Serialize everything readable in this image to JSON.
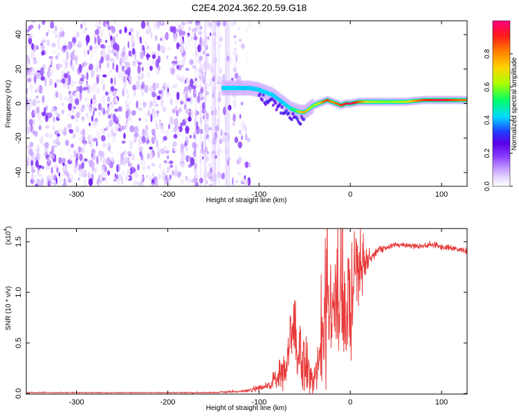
{
  "title": "C2E4.2024.362.20.59.G18",
  "colors": {
    "snr_line": "#e83a3a",
    "axis": "#000000",
    "background": "#ffffff",
    "colormap": [
      "#ffffff",
      "#e8d9ff",
      "#c9a3ff",
      "#8b3dff",
      "#5a00e6",
      "#1f3dff",
      "#00d9ff",
      "#00ff66",
      "#aaff00",
      "#ffd200",
      "#ff7a00",
      "#ff1a1a",
      "#ff0080"
    ]
  },
  "chart_data": [
    {
      "type": "heatmap",
      "title": "C2E4.2024.362.20.59.G18",
      "xlabel": "Height of straight line (km)",
      "ylabel": "Frequency (Hz)",
      "xlim": [
        -355,
        128
      ],
      "ylim": [
        -48,
        48
      ],
      "xticks": [
        -300,
        -200,
        -100,
        0,
        100
      ],
      "yticks": [
        -40,
        -20,
        0,
        20,
        40
      ],
      "colorbar": {
        "label": "Normalized spectral amplitude",
        "range": [
          0,
          1
        ],
        "ticks": [
          "0.0",
          "0.2",
          "0.4",
          "0.6",
          "0.8"
        ],
        "tick_values": [
          0.0,
          0.2,
          0.4,
          0.6,
          0.8
        ]
      },
      "noise_region_x": [
        -355,
        -110
      ],
      "ridge": {
        "x": [
          -140,
          -130,
          -120,
          -110,
          -100,
          -95,
          -90,
          -85,
          -80,
          -75,
          -70,
          -65,
          -60,
          -55,
          -50,
          -45,
          -40,
          -35,
          -30,
          -25,
          -20,
          -15,
          -10,
          -5,
          0,
          10,
          20,
          40,
          60,
          80,
          100,
          120,
          128
        ],
        "y": [
          9,
          9,
          9,
          9,
          8,
          7,
          6,
          5,
          3,
          1,
          -1,
          -3,
          -4,
          -5,
          -5,
          -3,
          -1,
          0,
          1,
          2,
          1,
          0,
          -1,
          0,
          0,
          1,
          1,
          1,
          1,
          2,
          2,
          2,
          2
        ],
        "amplitude": [
          0.5,
          0.55,
          0.5,
          0.5,
          0.5,
          0.55,
          0.55,
          0.5,
          0.5,
          0.5,
          0.55,
          0.6,
          0.6,
          0.75,
          0.8,
          0.7,
          0.65,
          0.7,
          0.85,
          0.9,
          0.8,
          0.85,
          0.9,
          0.95,
          1.0,
          0.85,
          0.7,
          0.65,
          0.7,
          0.9,
          0.95,
          0.85,
          0.85
        ]
      }
    },
    {
      "type": "line",
      "xlabel": "Height of straight line (km)",
      "ylabel": "SNR (10 * v/v)",
      "scale_label": "(x10",
      "scale_exp": "4",
      "scale_close": ")",
      "xlim": [
        -355,
        128
      ],
      "ylim": [
        -0.005,
        1.63
      ],
      "xticks": [
        -300,
        -200,
        -100,
        0,
        100
      ],
      "yticks": [
        "0.0",
        "0.5",
        "1.0",
        "1.5"
      ],
      "ytick_values": [
        0.0,
        0.5,
        1.0,
        1.5
      ],
      "series": [
        {
          "x": [
            -355,
            -300,
            -250,
            -200,
            -150,
            -120,
            -110,
            -105,
            -100,
            -90,
            -80,
            -70,
            -65,
            -62,
            -60,
            -55,
            -50,
            -45,
            -40,
            -35,
            -30,
            -25,
            -22,
            -20,
            -15,
            -10,
            -5,
            0,
            5,
            8,
            10,
            15,
            20,
            25,
            30,
            40,
            50,
            60,
            70,
            80,
            90,
            100,
            110,
            120,
            128
          ],
          "y": [
            0.01,
            0.01,
            0.01,
            0.01,
            0.01,
            0.02,
            0.03,
            0.05,
            0.04,
            0.08,
            0.15,
            0.25,
            0.5,
            0.6,
            0.45,
            0.4,
            0.3,
            0.2,
            0.12,
            0.3,
            0.55,
            0.75,
            0.9,
            0.85,
            0.95,
            0.8,
            0.75,
            0.9,
            1.1,
            1.3,
            1.2,
            1.25,
            1.3,
            1.38,
            1.42,
            1.44,
            1.47,
            1.47,
            1.46,
            1.46,
            1.47,
            1.45,
            1.44,
            1.42,
            1.41
          ],
          "noise": [
            0.002,
            0.002,
            0.002,
            0.002,
            0.003,
            0.005,
            0.01,
            0.015,
            0.02,
            0.03,
            0.06,
            0.1,
            0.2,
            0.25,
            0.2,
            0.2,
            0.15,
            0.08,
            0.05,
            0.15,
            0.2,
            0.3,
            0.35,
            0.3,
            0.3,
            0.3,
            0.3,
            0.3,
            0.3,
            0.3,
            0.2,
            0.12,
            0.07,
            0.03,
            0.02,
            0.015,
            0.015,
            0.015,
            0.015,
            0.015,
            0.015,
            0.015,
            0.015,
            0.015,
            0.015
          ]
        }
      ]
    }
  ]
}
